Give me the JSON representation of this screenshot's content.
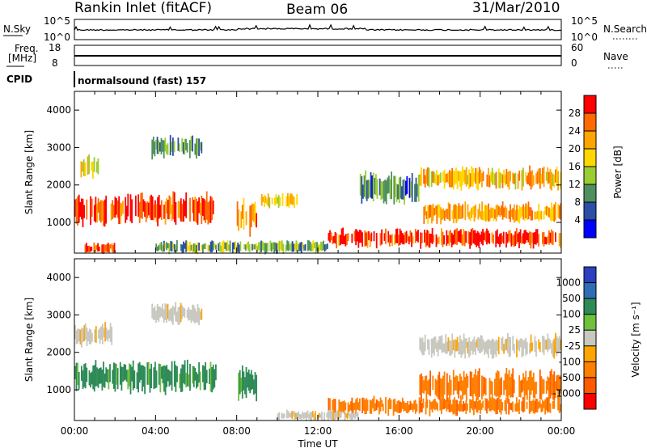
{
  "header": {
    "station": "Rankin Inlet (fitACF)",
    "beam": "Beam 06",
    "date": "31/Mar/2010"
  },
  "summary": {
    "nsky_label": "N.Sky",
    "nsearch_label": "N.Search",
    "freq_label": "Freq.",
    "freq_unit": "[MHz]",
    "nave_label": "Nave",
    "cpid_label": "CPID",
    "cpid_text": "normalsound (fast) 157",
    "nsky_ticks": [
      "10^5",
      "10^0"
    ],
    "nsearch_ticks": [
      "10^5",
      "10^0"
    ],
    "freq_ticks": [
      "18",
      "8"
    ],
    "nave_ticks": [
      "60",
      "0"
    ]
  },
  "colors": {
    "power": [
      "#0000ff",
      "#2b4ea6",
      "#4f8f5f",
      "#9acd32",
      "#ffd700",
      "#ffa500",
      "#ff6a00",
      "#ff0000"
    ],
    "velocity": [
      "#2b3fbf",
      "#2e6db4",
      "#2e8b57",
      "#6fc03a",
      "#c8c8c0",
      "#ffa500",
      "#ff7f00",
      "#ff5a00",
      "#ff0000"
    ],
    "ground_scatter": "#bebebe"
  },
  "chart_data": [
    {
      "type": "heatmap",
      "name": "power",
      "ylabel": "Slant Range [km]",
      "xlabel": "Time UT",
      "ylim": [
        180,
        4500
      ],
      "xlim": [
        0,
        24
      ],
      "x_ticks": [
        "00:00",
        "04:00",
        "08:00",
        "12:00",
        "16:00",
        "20:00",
        "00:00"
      ],
      "y_ticks": [
        1000,
        2000,
        3000,
        4000
      ],
      "colorbar": {
        "label": "Power [dB]",
        "ticks": [
          4,
          8,
          12,
          16,
          20,
          24,
          28
        ],
        "range": [
          0,
          32
        ]
      },
      "regions": [
        {
          "t": [
            0.0,
            7.0
          ],
          "r": [
            950,
            1750
          ],
          "v": 28
        },
        {
          "t": [
            0.3,
            1.2
          ],
          "r": [
            2200,
            2750
          ],
          "v": 16
        },
        {
          "t": [
            3.8,
            6.3
          ],
          "r": [
            2750,
            3300
          ],
          "v": 10
        },
        {
          "t": [
            8.0,
            9.0
          ],
          "r": [
            700,
            1600
          ],
          "v": 24
        },
        {
          "t": [
            9.2,
            11.0
          ],
          "r": [
            1400,
            1750
          ],
          "v": 18
        },
        {
          "t": [
            0.5,
            2.0
          ],
          "r": [
            180,
            450
          ],
          "v": 28
        },
        {
          "t": [
            4.0,
            12.5
          ],
          "r": [
            180,
            500
          ],
          "v": 12
        },
        {
          "t": [
            12.5,
            24.0
          ],
          "r": [
            350,
            800
          ],
          "v": 28
        },
        {
          "t": [
            17.2,
            24.0
          ],
          "r": [
            1000,
            1500
          ],
          "v": 22
        },
        {
          "t": [
            17.0,
            24.0
          ],
          "r": [
            1900,
            2450
          ],
          "v": 20
        },
        {
          "t": [
            14.0,
            17.0
          ],
          "r": [
            1500,
            2300
          ],
          "v": 9
        }
      ]
    },
    {
      "type": "heatmap",
      "name": "velocity",
      "ylabel": "Slant Range [km]",
      "xlabel": "Time UT",
      "ylim": [
        180,
        4500
      ],
      "xlim": [
        0,
        24
      ],
      "x_ticks": [
        "00:00",
        "04:00",
        "08:00",
        "12:00",
        "16:00",
        "20:00",
        "00:00"
      ],
      "y_ticks": [
        1000,
        2000,
        3000,
        4000
      ],
      "colorbar": {
        "label": "Velocity [m s⁻¹]",
        "ticks": [
          1000,
          500,
          100,
          25,
          -25,
          -100,
          -500,
          -1000
        ]
      },
      "regions": [
        {
          "t": [
            0.0,
            7.0
          ],
          "r": [
            950,
            1750
          ],
          "v": 300
        },
        {
          "t": [
            0.0,
            2.0
          ],
          "r": [
            2200,
            2750
          ],
          "v": 0
        },
        {
          "t": [
            3.8,
            6.3
          ],
          "r": [
            2750,
            3300
          ],
          "v": 0
        },
        {
          "t": [
            8.0,
            9.0
          ],
          "r": [
            700,
            1600
          ],
          "v": 300
        },
        {
          "t": [
            12.5,
            24.0
          ],
          "r": [
            350,
            800
          ],
          "v": -200
        },
        {
          "t": [
            17.0,
            24.0
          ],
          "r": [
            700,
            1500
          ],
          "v": -300
        },
        {
          "t": [
            17.0,
            24.0
          ],
          "r": [
            1900,
            2450
          ],
          "v": 0
        },
        {
          "t": [
            10.0,
            14.0
          ],
          "r": [
            180,
            450
          ],
          "v": 50
        }
      ]
    }
  ]
}
